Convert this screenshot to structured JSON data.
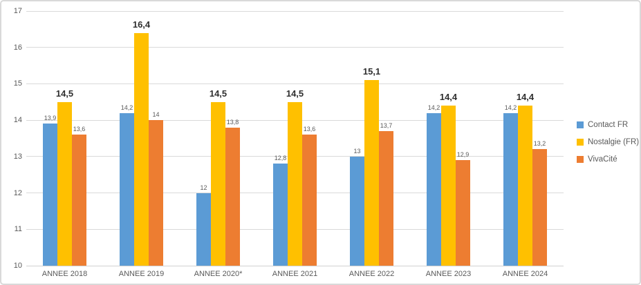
{
  "chart_data": {
    "type": "bar",
    "title": "",
    "xlabel": "",
    "ylabel": "",
    "categories": [
      "ANNEE 2018",
      "ANNEE 2019",
      "ANNEE 2020*",
      "ANNEE 2021",
      "ANNEE 2022",
      "ANNEE 2023",
      "ANNEE 2024"
    ],
    "series": [
      {
        "name": "Contact FR",
        "color": "#5B9BD5",
        "values": [
          13.9,
          14.2,
          12,
          12.8,
          13,
          14.2,
          14.2
        ],
        "labels": [
          "13,9",
          "14,2",
          "12",
          "12,8",
          "13",
          "14,2",
          "14,2"
        ],
        "label_style": "small"
      },
      {
        "name": "Nostalgie (FR)",
        "color": "#FFC000",
        "values": [
          14.5,
          16.4,
          14.5,
          14.5,
          15.1,
          14.4,
          14.4
        ],
        "labels": [
          "14,5",
          "16,4",
          "14,5",
          "14,5",
          "15,1",
          "14,4",
          "14,4"
        ],
        "label_style": "bold"
      },
      {
        "name": "VivaCité",
        "color": "#ED7D31",
        "values": [
          13.6,
          14,
          13.8,
          13.6,
          13.7,
          12.9,
          13.2
        ],
        "labels": [
          "13,6",
          "14",
          "13,8",
          "13,6",
          "13,7",
          "12,9",
          "13,2"
        ],
        "label_style": "small"
      }
    ],
    "y_axis": {
      "min": 10,
      "max": 17,
      "step": 1,
      "ticks": [
        "10",
        "11",
        "12",
        "13",
        "14",
        "15",
        "16",
        "17"
      ]
    },
    "legend": {
      "position": "right",
      "items": [
        "Contact FR",
        "Nostalgie (FR)",
        "VivaCité"
      ]
    },
    "grid": true,
    "colors": {
      "gridline": "#D9D9D9",
      "axis_text": "#595959",
      "label_small": "#595959",
      "label_bold": "#2E2E2E"
    }
  }
}
